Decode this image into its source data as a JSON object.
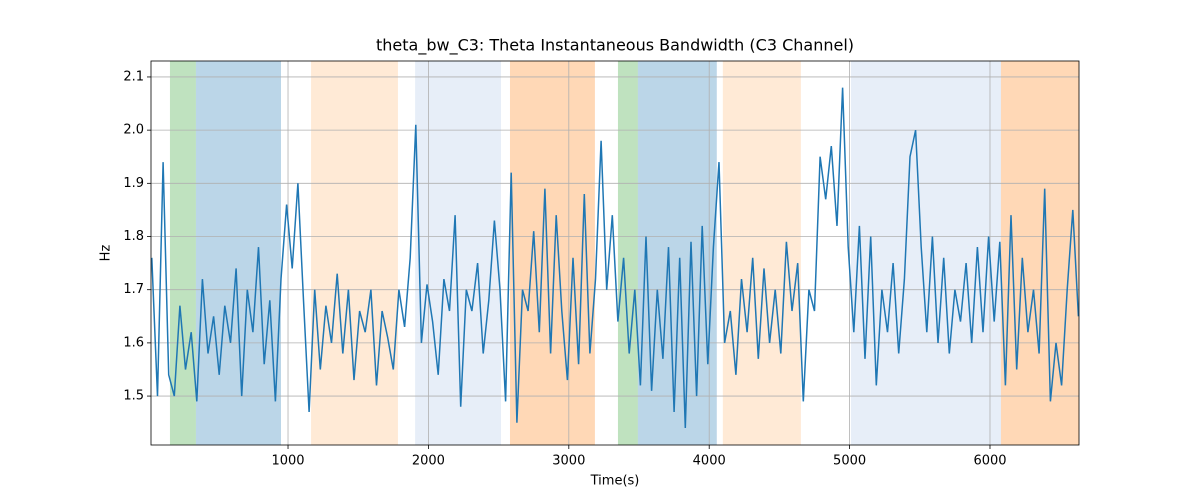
{
  "chart_data": {
    "type": "line",
    "title": "theta_bw_C3: Theta Instantaneous Bandwidth (C3 Channel)",
    "xlabel": "Time(s)",
    "ylabel": "Hz",
    "xlim": [
      24,
      6634
    ],
    "ylim": [
      1.408,
      2.13
    ],
    "xticks": [
      1000,
      2000,
      3000,
      4000,
      5000,
      6000
    ],
    "yticks": [
      1.5,
      1.6,
      1.7,
      1.8,
      1.9,
      {
        "value": 2,
        "label": "2.0"
      },
      2.1
    ],
    "grid": true,
    "spans": [
      {
        "start": 159,
        "end": 344,
        "color": "#2ca02c",
        "opacity": 0.3
      },
      {
        "start": 344,
        "end": 950,
        "color": "#1f77b4",
        "opacity": 0.3
      },
      {
        "start": 1164,
        "end": 1783,
        "color": "#ffbb78",
        "opacity": 0.3
      },
      {
        "start": 1905,
        "end": 2517,
        "color": "#aec7e8",
        "opacity": 0.3
      },
      {
        "start": 2581,
        "end": 3186,
        "color": "#ff7f0e",
        "opacity": 0.3
      },
      {
        "start": 3350,
        "end": 3492,
        "color": "#2ca02c",
        "opacity": 0.3
      },
      {
        "start": 3492,
        "end": 4054,
        "color": "#1f77b4",
        "opacity": 0.3
      },
      {
        "start": 4097,
        "end": 4653,
        "color": "#ffbb78",
        "opacity": 0.3
      },
      {
        "start": 5010,
        "end": 6078,
        "color": "#aec7e8",
        "opacity": 0.3
      },
      {
        "start": 6078,
        "end": 6634,
        "color": "#ff7f0e",
        "opacity": 0.3
      }
    ],
    "series": [
      {
        "color": "#1f77b4",
        "x": [
          30,
          70,
          110,
          150,
          190,
          230,
          270,
          310,
          350,
          390,
          430,
          470,
          510,
          550,
          590,
          630,
          670,
          710,
          750,
          790,
          830,
          870,
          910,
          950,
          990,
          1030,
          1070,
          1110,
          1150,
          1190,
          1230,
          1270,
          1310,
          1350,
          1390,
          1430,
          1470,
          1510,
          1550,
          1590,
          1630,
          1670,
          1710,
          1750,
          1790,
          1830,
          1870,
          1910,
          1950,
          1990,
          2030,
          2070,
          2110,
          2150,
          2190,
          2230,
          2270,
          2310,
          2350,
          2390,
          2430,
          2470,
          2510,
          2550,
          2590,
          2630,
          2670,
          2710,
          2750,
          2790,
          2830,
          2870,
          2910,
          2950,
          2990,
          3030,
          3070,
          3110,
          3150,
          3190,
          3230,
          3270,
          3310,
          3350,
          3390,
          3430,
          3470,
          3510,
          3550,
          3590,
          3630,
          3670,
          3710,
          3750,
          3790,
          3830,
          3870,
          3910,
          3950,
          3990,
          4030,
          4070,
          4110,
          4150,
          4190,
          4230,
          4270,
          4310,
          4350,
          4390,
          4430,
          4470,
          4510,
          4550,
          4590,
          4630,
          4670,
          4710,
          4750,
          4790,
          4830,
          4870,
          4910,
          4950,
          4990,
          5030,
          5070,
          5110,
          5150,
          5190,
          5230,
          5270,
          5310,
          5350,
          5390,
          5430,
          5470,
          5510,
          5550,
          5590,
          5630,
          5670,
          5710,
          5750,
          5790,
          5830,
          5870,
          5910,
          5950,
          5990,
          6030,
          6070,
          6110,
          6150,
          6190,
          6230,
          6270,
          6310,
          6350,
          6390,
          6430,
          6470,
          6510,
          6550,
          6590,
          6630
        ],
        "values": [
          1.76,
          1.5,
          1.94,
          1.54,
          1.5,
          1.67,
          1.55,
          1.62,
          1.49,
          1.72,
          1.58,
          1.65,
          1.54,
          1.67,
          1.6,
          1.74,
          1.5,
          1.7,
          1.62,
          1.78,
          1.56,
          1.68,
          1.49,
          1.72,
          1.86,
          1.74,
          1.9,
          1.68,
          1.47,
          1.7,
          1.55,
          1.67,
          1.6,
          1.73,
          1.58,
          1.7,
          1.53,
          1.66,
          1.62,
          1.7,
          1.52,
          1.66,
          1.61,
          1.55,
          1.7,
          1.63,
          1.76,
          2.01,
          1.6,
          1.71,
          1.64,
          1.54,
          1.72,
          1.66,
          1.84,
          1.48,
          1.7,
          1.66,
          1.75,
          1.58,
          1.68,
          1.83,
          1.7,
          1.49,
          1.92,
          1.45,
          1.7,
          1.66,
          1.81,
          1.62,
          1.89,
          1.58,
          1.84,
          1.66,
          1.53,
          1.76,
          1.56,
          1.88,
          1.58,
          1.72,
          1.98,
          1.7,
          1.84,
          1.64,
          1.76,
          1.58,
          1.7,
          1.52,
          1.8,
          1.51,
          1.7,
          1.57,
          1.78,
          1.47,
          1.76,
          1.44,
          1.79,
          1.5,
          1.82,
          1.56,
          1.78,
          1.94,
          1.6,
          1.66,
          1.54,
          1.72,
          1.62,
          1.76,
          1.57,
          1.74,
          1.6,
          1.7,
          1.58,
          1.79,
          1.66,
          1.75,
          1.49,
          1.7,
          1.66,
          1.95,
          1.87,
          1.97,
          1.82,
          2.08,
          1.78,
          1.62,
          1.82,
          1.57,
          1.8,
          1.52,
          1.7,
          1.62,
          1.75,
          1.58,
          1.72,
          1.95,
          2.0,
          1.78,
          1.62,
          1.8,
          1.6,
          1.76,
          1.58,
          1.7,
          1.64,
          1.75,
          1.6,
          1.78,
          1.62,
          1.8,
          1.64,
          1.79,
          1.52,
          1.84,
          1.55,
          1.76,
          1.62,
          1.7,
          1.58,
          1.89,
          1.49,
          1.6,
          1.52,
          1.7,
          1.85,
          1.65
        ]
      }
    ]
  }
}
